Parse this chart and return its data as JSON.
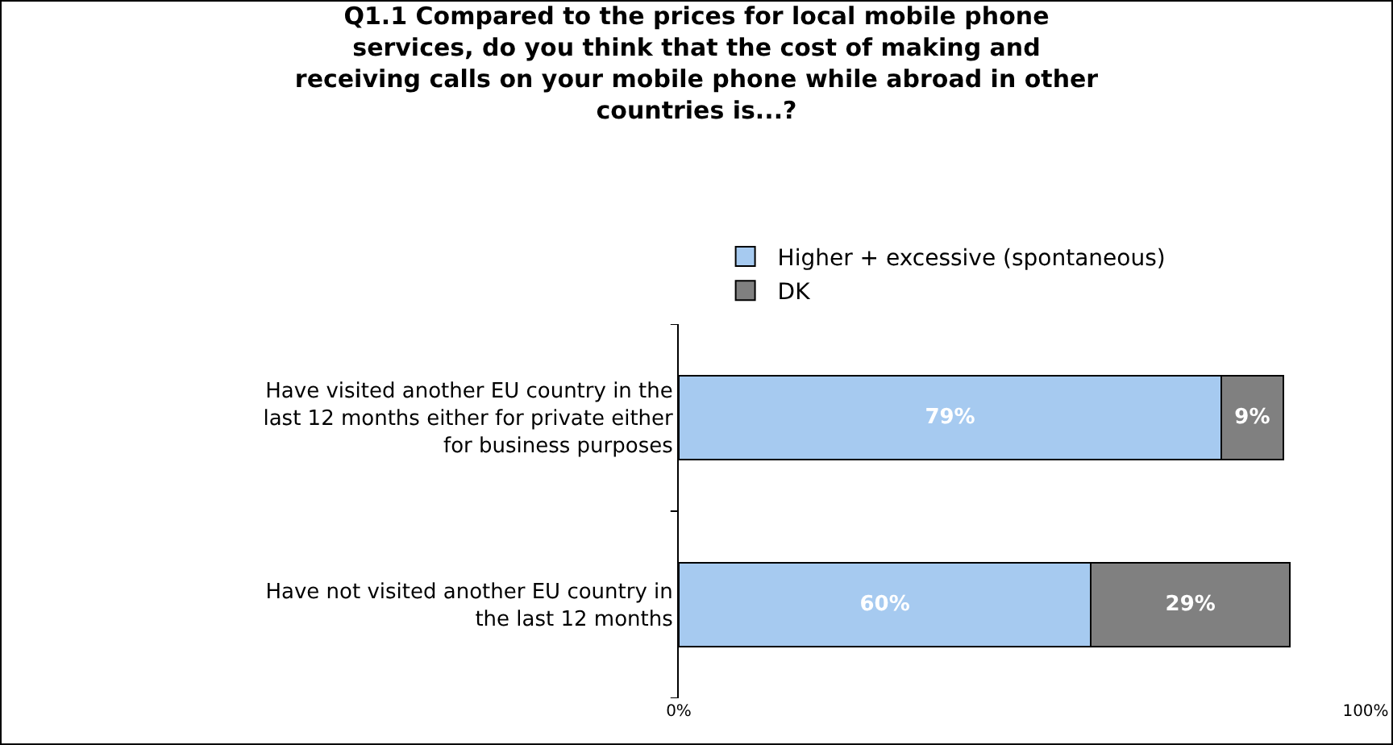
{
  "chart_data": {
    "type": "bar",
    "orientation": "horizontal",
    "stacked": true,
    "title": "Q1.1 Compared to the prices for local mobile phone services, do you think that the cost of making and receiving calls on your mobile phone while abroad in other countries is...?",
    "categories": [
      "Have visited another EU country in the last 12 months either for private either for business purposes",
      "Have not visited another EU country in the last 12 months"
    ],
    "series": [
      {
        "name": "Higher + excessive (spontaneous)",
        "color": "#a6caf0",
        "values": [
          79,
          60
        ],
        "value_labels": [
          "79%",
          "60%"
        ]
      },
      {
        "name": "DK",
        "color": "#808080",
        "values": [
          9,
          29
        ],
        "value_labels": [
          "9%",
          "29%"
        ]
      }
    ],
    "xlim": [
      0,
      100
    ],
    "xticks": [
      {
        "value": 0,
        "label": "0%"
      },
      {
        "value": 100,
        "label": "100%"
      }
    ],
    "legend": "top"
  }
}
